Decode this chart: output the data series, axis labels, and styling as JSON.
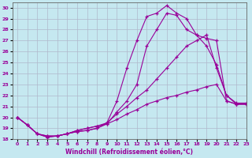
{
  "xlabel": "Windchill (Refroidissement éolien,°C)",
  "ylabel": "",
  "xlim": [
    -0.5,
    23
  ],
  "ylim": [
    18,
    30.5
  ],
  "xticks": [
    0,
    1,
    2,
    3,
    4,
    5,
    6,
    7,
    8,
    9,
    10,
    11,
    12,
    13,
    14,
    15,
    16,
    17,
    18,
    19,
    20,
    21,
    22,
    23
  ],
  "yticks": [
    18,
    19,
    20,
    21,
    22,
    23,
    24,
    25,
    26,
    27,
    28,
    29,
    30
  ],
  "bg_color": "#c5e8f0",
  "line_color": "#990099",
  "grid_color": "#b0b8cc",
  "lines": [
    [
      0,
      1,
      2,
      3,
      4,
      5,
      6,
      7,
      8,
      9,
      10,
      11,
      12,
      13,
      14,
      15,
      16,
      17,
      18,
      19,
      20,
      21,
      22,
      23
    ],
    [
      [
        20.0,
        19.3,
        18.5,
        18.2,
        18.3,
        18.5,
        18.7,
        18.8,
        19.0,
        19.5,
        21.5,
        24.5,
        27.0,
        29.2,
        29.5,
        30.2,
        29.5,
        29.0,
        27.5,
        27.2,
        27.0,
        21.5,
        21.2,
        21.2
      ],
      [
        20.0,
        19.3,
        18.5,
        18.2,
        18.3,
        18.5,
        18.7,
        18.8,
        19.0,
        19.4,
        20.5,
        21.5,
        23.0,
        26.5,
        28.0,
        29.5,
        29.3,
        28.0,
        27.5,
        26.5,
        24.8,
        22.0,
        21.2,
        21.2
      ],
      [
        20.0,
        19.3,
        18.5,
        18.3,
        18.3,
        18.5,
        18.8,
        19.0,
        19.2,
        19.5,
        20.3,
        21.0,
        21.8,
        22.5,
        23.5,
        24.5,
        25.5,
        26.5,
        27.0,
        27.5,
        24.5,
        22.0,
        21.3,
        21.3
      ],
      [
        20.0,
        19.3,
        18.5,
        18.3,
        18.3,
        18.5,
        18.8,
        19.0,
        19.2,
        19.4,
        19.8,
        20.3,
        20.7,
        21.2,
        21.5,
        21.8,
        22.0,
        22.3,
        22.5,
        22.8,
        23.0,
        21.5,
        21.2,
        21.2
      ]
    ]
  ]
}
